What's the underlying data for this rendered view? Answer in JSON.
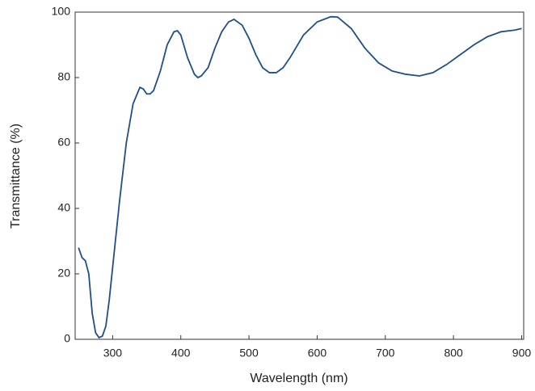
{
  "chart_data": {
    "type": "line",
    "x_label": "Wavelength (nm)",
    "y_label": "Transmittance (%)",
    "xlim": [
      245,
      903
    ],
    "ylim": [
      0,
      100
    ],
    "xticks": [
      300,
      400,
      500,
      600,
      700,
      800,
      900
    ],
    "yticks": [
      0,
      20,
      40,
      60,
      80,
      100
    ],
    "series": [
      {
        "color": "#1f4e8c",
        "x": [
          250,
          255,
          260,
          265,
          270,
          275,
          280,
          285,
          290,
          295,
          300,
          310,
          320,
          330,
          340,
          345,
          350,
          355,
          360,
          370,
          380,
          390,
          395,
          400,
          410,
          420,
          425,
          430,
          440,
          450,
          460,
          470,
          478,
          490,
          500,
          510,
          520,
          530,
          540,
          550,
          560,
          580,
          600,
          620,
          630,
          650,
          670,
          690,
          710,
          730,
          750,
          770,
          790,
          810,
          830,
          850,
          870,
          890,
          900
        ],
        "values": [
          28,
          25,
          24,
          20,
          8,
          2,
          0.5,
          1,
          4,
          12,
          22,
          42,
          60,
          72,
          77,
          76.5,
          75,
          75,
          76,
          82,
          90,
          94,
          94.3,
          93,
          86,
          81,
          80,
          80.5,
          83,
          89,
          94,
          97,
          97.8,
          96,
          92,
          87,
          83,
          81.5,
          81.5,
          83,
          86,
          93,
          97,
          98.6,
          98.5,
          95,
          89,
          84.5,
          82,
          81,
          80.5,
          81.5,
          84,
          87,
          90,
          92.5,
          94,
          94.5,
          95
        ]
      }
    ]
  }
}
